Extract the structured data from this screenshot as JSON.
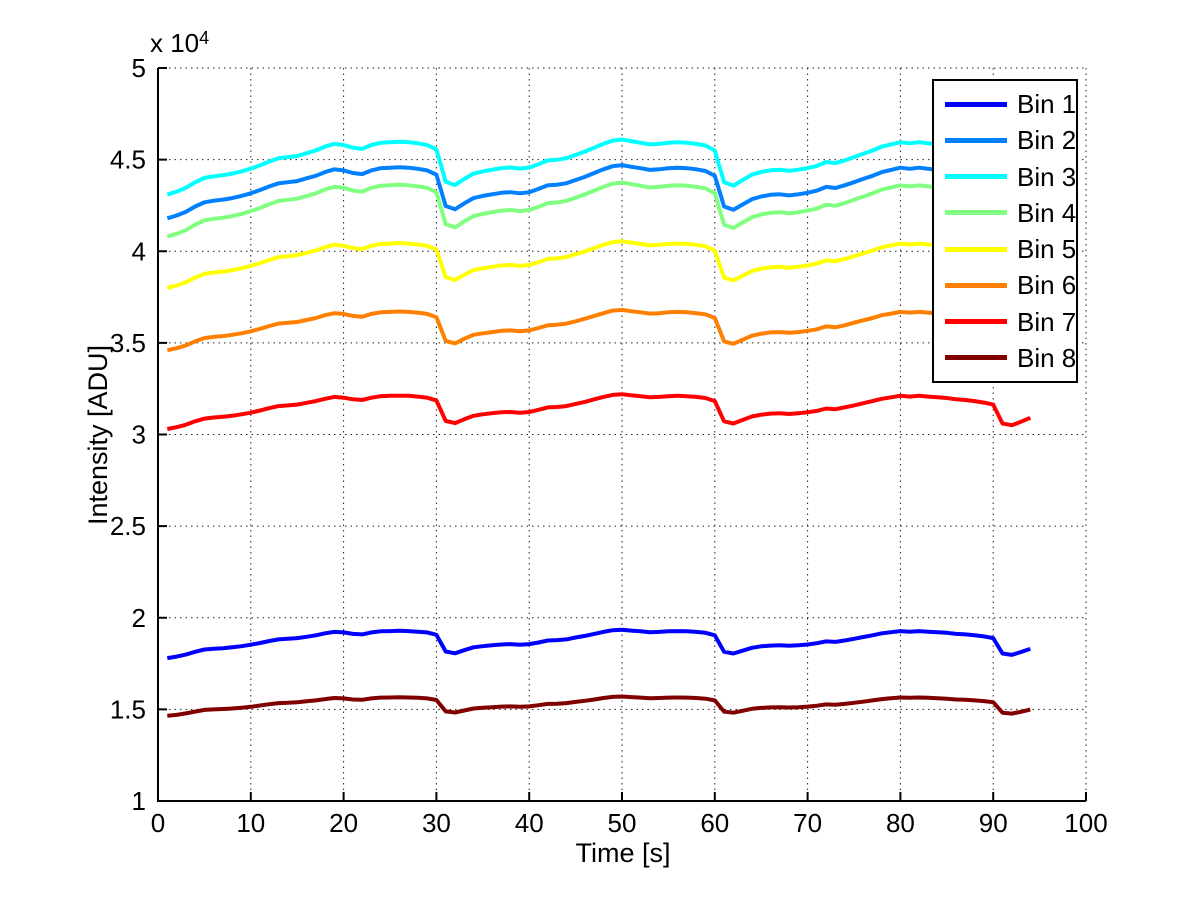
{
  "chart_data": {
    "type": "line",
    "xlabel": "Time [s]",
    "ylabel": "Intensity [ADU]",
    "y_multiplier_base": "x 10",
    "y_multiplier_exp": "4",
    "xlim": [
      0,
      100
    ],
    "ylim": [
      1,
      5
    ],
    "y_scale": 10000,
    "grid": "dotted",
    "legend_position": "northeast",
    "x_ticks": [
      0,
      10,
      20,
      30,
      40,
      50,
      60,
      70,
      80,
      90,
      100
    ],
    "x_tick_labels": [
      "0",
      "10",
      "20",
      "30",
      "40",
      "50",
      "60",
      "70",
      "80",
      "90",
      "100"
    ],
    "y_ticks": [
      1,
      1.5,
      2,
      2.5,
      3,
      3.5,
      4,
      4.5,
      5
    ],
    "y_tick_labels": [
      "1",
      "1.5",
      "2",
      "2.5",
      "3",
      "3.5",
      "4",
      "4.5",
      "5"
    ],
    "x": [
      1,
      2,
      3,
      4,
      5,
      6,
      7,
      8,
      9,
      10,
      11,
      12,
      13,
      14,
      15,
      16,
      17,
      18,
      19,
      20,
      21,
      22,
      23,
      24,
      25,
      26,
      27,
      28,
      29,
      30,
      31,
      32,
      33,
      34,
      35,
      36,
      37,
      38,
      39,
      40,
      41,
      42,
      43,
      44,
      45,
      46,
      47,
      48,
      49,
      50,
      51,
      52,
      53,
      54,
      55,
      56,
      57,
      58,
      59,
      60,
      61,
      62,
      63,
      64,
      65,
      66,
      67,
      68,
      69,
      70,
      71,
      72,
      73,
      74,
      75,
      76,
      77,
      78,
      79,
      80,
      81,
      82,
      83,
      84,
      85,
      86,
      87,
      88,
      89,
      90,
      91,
      92,
      93,
      94
    ],
    "series": [
      {
        "name": "Bin 1",
        "color": "#0000FF",
        "values": [
          17800,
          17880,
          17990,
          18140,
          18270,
          18310,
          18340,
          18390,
          18450,
          18530,
          18620,
          18730,
          18820,
          18850,
          18890,
          18960,
          19040,
          19150,
          19230,
          19200,
          19120,
          19090,
          19200,
          19260,
          19270,
          19290,
          19270,
          19240,
          19200,
          19070,
          18160,
          18060,
          18230,
          18390,
          18450,
          18500,
          18540,
          18560,
          18530,
          18560,
          18650,
          18760,
          18780,
          18820,
          18920,
          19010,
          19120,
          19230,
          19320,
          19350,
          19300,
          19260,
          19210,
          19230,
          19260,
          19270,
          19260,
          19230,
          19180,
          19040,
          18140,
          18050,
          18200,
          18360,
          18440,
          18480,
          18500,
          18470,
          18500,
          18540,
          18610,
          18710,
          18680,
          18760,
          18850,
          18950,
          19040,
          19150,
          19210,
          19270,
          19240,
          19270,
          19240,
          19210,
          19180,
          19120,
          19090,
          19040,
          18980,
          18890,
          18050,
          17970,
          18130,
          18300
        ]
      },
      {
        "name": "Bin 2",
        "color": "#0080FF",
        "values": [
          41800,
          41950,
          42150,
          42440,
          42670,
          42760,
          42820,
          42900,
          43020,
          43160,
          43340,
          43540,
          43710,
          43770,
          43830,
          43980,
          44120,
          44320,
          44470,
          44410,
          44270,
          44210,
          44410,
          44530,
          44560,
          44580,
          44560,
          44500,
          44410,
          44180,
          42470,
          42290,
          42610,
          42900,
          43020,
          43110,
          43190,
          43220,
          43160,
          43220,
          43400,
          43600,
          43630,
          43710,
          43890,
          44060,
          44270,
          44470,
          44640,
          44700,
          44610,
          44530,
          44440,
          44470,
          44530,
          44560,
          44530,
          44470,
          44380,
          44120,
          42440,
          42260,
          42550,
          42840,
          42990,
          43080,
          43110,
          43050,
          43110,
          43190,
          43310,
          43510,
          43450,
          43600,
          43770,
          43950,
          44120,
          44320,
          44440,
          44560,
          44500,
          44560,
          44500,
          44440,
          44380,
          44270,
          44210,
          44120,
          44000,
          43830,
          42260,
          42120,
          42410,
          42730
        ]
      },
      {
        "name": "Bin 3",
        "color": "#00FFFF",
        "values": [
          43100,
          43250,
          43460,
          43760,
          44000,
          44090,
          44150,
          44240,
          44360,
          44510,
          44690,
          44900,
          45080,
          45140,
          45200,
          45350,
          45500,
          45710,
          45860,
          45800,
          45650,
          45590,
          45800,
          45920,
          45950,
          45980,
          45950,
          45890,
          45800,
          45560,
          43790,
          43610,
          43940,
          44240,
          44360,
          44450,
          44540,
          44570,
          44510,
          44570,
          44750,
          44960,
          44990,
          45080,
          45260,
          45440,
          45650,
          45860,
          46040,
          46100,
          46010,
          45920,
          45830,
          45860,
          45920,
          45950,
          45920,
          45860,
          45770,
          45500,
          43760,
          43580,
          43880,
          44180,
          44330,
          44420,
          44450,
          44390,
          44450,
          44540,
          44660,
          44870,
          44810,
          44960,
          45140,
          45320,
          45500,
          45710,
          45830,
          45950,
          45890,
          45950,
          45890,
          45830,
          45770,
          45650,
          45590,
          45500,
          45380,
          45200,
          43580,
          43430,
          43730,
          44060
        ]
      },
      {
        "name": "Bin 4",
        "color": "#80FF80",
        "values": [
          40800,
          40950,
          41150,
          41450,
          41690,
          41770,
          41830,
          41920,
          42040,
          42190,
          42360,
          42570,
          42750,
          42810,
          42870,
          43010,
          43160,
          43370,
          43510,
          43460,
          43310,
          43250,
          43460,
          43570,
          43600,
          43630,
          43600,
          43540,
          43460,
          43220,
          41480,
          41300,
          41630,
          41920,
          42040,
          42130,
          42220,
          42250,
          42190,
          42250,
          42420,
          42630,
          42660,
          42750,
          42920,
          43100,
          43310,
          43510,
          43690,
          43750,
          43660,
          43570,
          43480,
          43510,
          43570,
          43600,
          43570,
          43510,
          43430,
          43160,
          41450,
          41270,
          41570,
          41860,
          42010,
          42100,
          42130,
          42070,
          42130,
          42220,
          42330,
          42540,
          42480,
          42630,
          42810,
          42980,
          43160,
          43370,
          43480,
          43600,
          43540,
          43600,
          43540,
          43480,
          43430,
          43310,
          43250,
          43160,
          43040,
          42870,
          41270,
          41120,
          41420,
          41740
        ]
      },
      {
        "name": "Bin 5",
        "color": "#FFFF00",
        "values": [
          38000,
          38130,
          38310,
          38560,
          38770,
          38840,
          38890,
          38970,
          39070,
          39200,
          39350,
          39530,
          39680,
          39730,
          39790,
          39910,
          40040,
          40220,
          40350,
          40300,
          40170,
          40120,
          40300,
          40400,
          40420,
          40450,
          40420,
          40370,
          40300,
          40090,
          38590,
          38430,
          38710,
          38970,
          39070,
          39150,
          39220,
          39250,
          39200,
          39250,
          39400,
          39580,
          39610,
          39680,
          39840,
          39990,
          40170,
          40350,
          40500,
          40550,
          40470,
          40400,
          40320,
          40350,
          40400,
          40420,
          40400,
          40350,
          40270,
          40040,
          38560,
          38410,
          38660,
          38920,
          39050,
          39120,
          39150,
          39100,
          39150,
          39220,
          39330,
          39500,
          39450,
          39580,
          39730,
          39890,
          40040,
          40220,
          40320,
          40420,
          40370,
          40420,
          40370,
          40320,
          40270,
          40170,
          40120,
          40040,
          39940,
          39790,
          38410,
          38280,
          38540,
          38820
        ]
      },
      {
        "name": "Bin 6",
        "color": "#FF8000",
        "values": [
          34600,
          34710,
          34860,
          35080,
          35260,
          35330,
          35370,
          35440,
          35520,
          35630,
          35770,
          35920,
          36050,
          36100,
          36140,
          36250,
          36360,
          36510,
          36620,
          36580,
          36470,
          36430,
          36580,
          36670,
          36690,
          36710,
          36690,
          36650,
          36580,
          36400,
          35110,
          34970,
          35220,
          35440,
          35520,
          35590,
          35660,
          35680,
          35630,
          35680,
          35810,
          35960,
          35990,
          36050,
          36180,
          36320,
          36470,
          36620,
          36760,
          36800,
          36730,
          36670,
          36600,
          36620,
          36670,
          36690,
          36670,
          36620,
          36560,
          36360,
          35080,
          34950,
          35170,
          35390,
          35500,
          35570,
          35590,
          35550,
          35590,
          35660,
          35740,
          35900,
          35850,
          35960,
          36100,
          36230,
          36360,
          36510,
          36600,
          36690,
          36650,
          36690,
          36650,
          36600,
          36560,
          36470,
          36430,
          36360,
          36270,
          36140,
          34950,
          34840,
          35060,
          35300
        ]
      },
      {
        "name": "Bin 7",
        "color": "#FF0000",
        "values": [
          30300,
          30400,
          30530,
          30720,
          30870,
          30930,
          30970,
          31020,
          31100,
          31190,
          31310,
          31440,
          31550,
          31590,
          31630,
          31730,
          31820,
          31950,
          32050,
          32010,
          31920,
          31880,
          32010,
          32090,
          32110,
          32120,
          32110,
          32070,
          32010,
          31860,
          30740,
          30620,
          30830,
          31020,
          31100,
          31160,
          31210,
          31230,
          31190,
          31230,
          31350,
          31480,
          31500,
          31550,
          31670,
          31780,
          31920,
          32050,
          32160,
          32200,
          32140,
          32090,
          32030,
          32050,
          32090,
          32110,
          32090,
          32050,
          31990,
          31820,
          30720,
          30600,
          30790,
          30980,
          31080,
          31140,
          31160,
          31120,
          31160,
          31210,
          31290,
          31420,
          31380,
          31480,
          31590,
          31710,
          31820,
          31950,
          32030,
          32110,
          32070,
          32110,
          32070,
          32030,
          31990,
          31920,
          31880,
          31820,
          31740,
          31630,
          30600,
          30510,
          30700,
          30910
        ]
      },
      {
        "name": "Bin 8",
        "color": "#800000",
        "values": [
          14650,
          14700,
          14780,
          14880,
          14970,
          15000,
          15020,
          15050,
          15090,
          15140,
          15210,
          15280,
          15340,
          15360,
          15390,
          15440,
          15490,
          15560,
          15620,
          15600,
          15540,
          15520,
          15600,
          15640,
          15650,
          15660,
          15650,
          15630,
          15600,
          15510,
          14890,
          14830,
          14940,
          15050,
          15090,
          15120,
          15150,
          15160,
          15140,
          15160,
          15230,
          15300,
          15310,
          15340,
          15410,
          15470,
          15540,
          15620,
          15680,
          15700,
          15670,
          15640,
          15610,
          15620,
          15640,
          15650,
          15640,
          15620,
          15580,
          15490,
          14880,
          14820,
          14920,
          15030,
          15080,
          15110,
          15120,
          15100,
          15120,
          15150,
          15200,
          15270,
          15250,
          15300,
          15360,
          15420,
          15490,
          15560,
          15610,
          15650,
          15630,
          15650,
          15630,
          15610,
          15580,
          15540,
          15520,
          15490,
          15450,
          15390,
          14820,
          14770,
          14870,
          14990
        ]
      }
    ]
  }
}
